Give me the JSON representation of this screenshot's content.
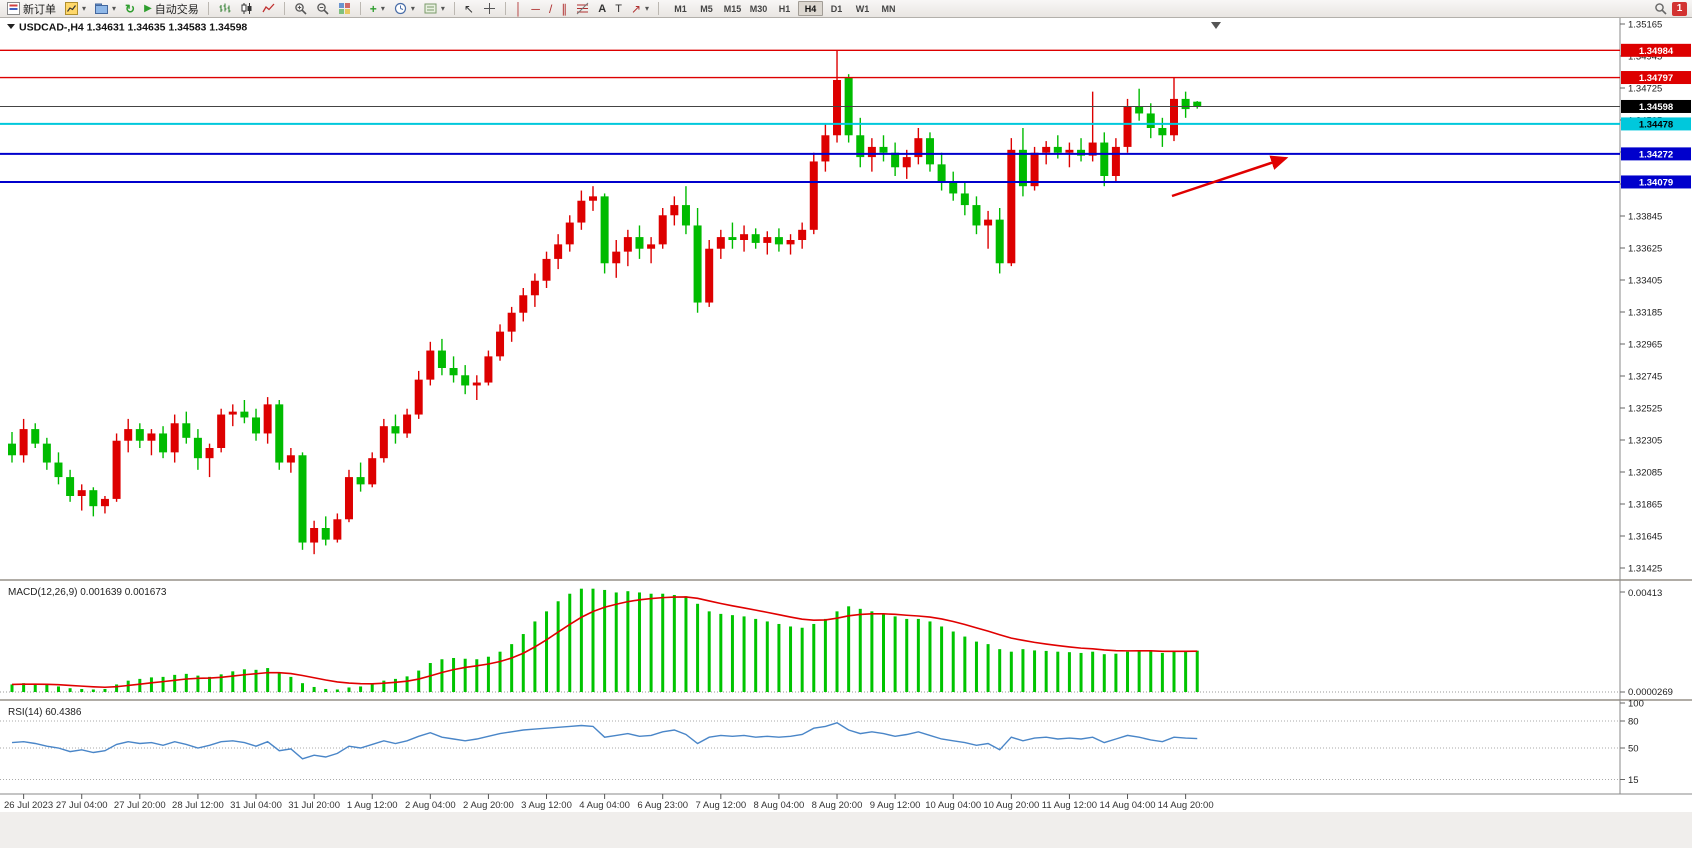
{
  "toolbar": {
    "new_order": "新订单",
    "autotrading": "自动交易",
    "timeframes": [
      "M1",
      "M5",
      "M15",
      "M30",
      "H1",
      "H4",
      "D1",
      "W1",
      "MN"
    ],
    "active_timeframe": "H4",
    "notification_count": "1"
  },
  "chart": {
    "symbol": "USDCAD-",
    "period": "H4",
    "header": "USDCAD-,H4 1.34631 1.34635 1.34583 1.34598",
    "open": "1.34631",
    "high": "1.34635",
    "low": "1.34583",
    "close": "1.34598",
    "colors": {
      "up": "#dd0000",
      "down": "#00bb00",
      "bid_line": "#444444"
    },
    "price_ticks": [
      "1.35165",
      "1.34945",
      "1.34725",
      "1.34505",
      "1.34285",
      "1.34065",
      "1.33845",
      "1.33625",
      "1.33405",
      "1.33185",
      "1.32965",
      "1.32745",
      "1.32525",
      "1.32305",
      "1.32085",
      "1.31865",
      "1.31645",
      "1.31425"
    ],
    "hlines": [
      {
        "price": 1.34984,
        "label": "1.34984",
        "color": "#dd0000",
        "text": "#ffffff",
        "w": 1.4
      },
      {
        "price": 1.34797,
        "label": "1.34797",
        "color": "#dd0000",
        "text": "#ffffff",
        "w": 1.4
      },
      {
        "price": 1.34478,
        "label": "1.34478",
        "color": "#00c8dc",
        "text": "#000000",
        "w": 2
      },
      {
        "price": 1.34272,
        "label": "1.34272",
        "color": "#0000cc",
        "text": "#ffffff",
        "w": 2
      },
      {
        "price": 1.34079,
        "label": "1.34079",
        "color": "#0000cc",
        "text": "#ffffff",
        "w": 2
      }
    ],
    "bid": {
      "price": 1.34598,
      "label": "1.34598",
      "line_color": "#444444",
      "badge_color": "#000000",
      "text": "#ffffff"
    },
    "time_labels": [
      "26 Jul 2023",
      "27 Jul 04:00",
      "27 Jul 20:00",
      "28 Jul 12:00",
      "31 Jul 04:00",
      "31 Jul 20:00",
      "1 Aug 12:00",
      "2 Aug 04:00",
      "2 Aug 20:00",
      "3 Aug 12:00",
      "4 Aug 04:00",
      "6 Aug 23:00",
      "7 Aug 12:00",
      "8 Aug 04:00",
      "8 Aug 20:00",
      "9 Aug 12:00",
      "10 Aug 04:00",
      "10 Aug 20:00",
      "11 Aug 12:00",
      "14 Aug 04:00",
      "14 Aug 20:00"
    ],
    "annotation_arrow_color": "#e00000"
  },
  "chart_data": {
    "type": "candlestick",
    "symbol": "USDCAD",
    "timeframe": "H4",
    "ylim": [
      1.31425,
      1.35165
    ],
    "ohlc": [
      [
        1.3228,
        1.3236,
        1.3215,
        1.322
      ],
      [
        1.322,
        1.3245,
        1.3215,
        1.3238
      ],
      [
        1.3238,
        1.3242,
        1.3225,
        1.3228
      ],
      [
        1.3228,
        1.3232,
        1.321,
        1.3215
      ],
      [
        1.3215,
        1.3222,
        1.32,
        1.3205
      ],
      [
        1.3205,
        1.321,
        1.3188,
        1.3192
      ],
      [
        1.3192,
        1.32,
        1.3182,
        1.3196
      ],
      [
        1.3196,
        1.3198,
        1.3178,
        1.3185
      ],
      [
        1.3185,
        1.3192,
        1.318,
        1.319
      ],
      [
        1.319,
        1.3235,
        1.3188,
        1.323
      ],
      [
        1.323,
        1.3245,
        1.3222,
        1.3238
      ],
      [
        1.3238,
        1.3242,
        1.3225,
        1.323
      ],
      [
        1.323,
        1.3238,
        1.322,
        1.3235
      ],
      [
        1.3235,
        1.324,
        1.3218,
        1.3222
      ],
      [
        1.3222,
        1.3248,
        1.3215,
        1.3242
      ],
      [
        1.3242,
        1.325,
        1.3228,
        1.3232
      ],
      [
        1.3232,
        1.3238,
        1.321,
        1.3218
      ],
      [
        1.3218,
        1.3228,
        1.3205,
        1.3225
      ],
      [
        1.3225,
        1.3252,
        1.3222,
        1.3248
      ],
      [
        1.3248,
        1.3255,
        1.324,
        1.325
      ],
      [
        1.325,
        1.3258,
        1.3242,
        1.3246
      ],
      [
        1.3246,
        1.3252,
        1.323,
        1.3235
      ],
      [
        1.3235,
        1.326,
        1.3228,
        1.3255
      ],
      [
        1.3255,
        1.3258,
        1.321,
        1.3215
      ],
      [
        1.3215,
        1.3225,
        1.3208,
        1.322
      ],
      [
        1.322,
        1.3222,
        1.3155,
        1.316
      ],
      [
        1.316,
        1.3175,
        1.3152,
        1.317
      ],
      [
        1.317,
        1.3178,
        1.3158,
        1.3162
      ],
      [
        1.3162,
        1.318,
        1.316,
        1.3176
      ],
      [
        1.3176,
        1.321,
        1.3174,
        1.3205
      ],
      [
        1.3205,
        1.3215,
        1.3195,
        1.32
      ],
      [
        1.32,
        1.3222,
        1.3198,
        1.3218
      ],
      [
        1.3218,
        1.3245,
        1.3215,
        1.324
      ],
      [
        1.324,
        1.3248,
        1.3228,
        1.3235
      ],
      [
        1.3235,
        1.3252,
        1.3232,
        1.3248
      ],
      [
        1.3248,
        1.3278,
        1.3245,
        1.3272
      ],
      [
        1.3272,
        1.3298,
        1.3268,
        1.3292
      ],
      [
        1.3292,
        1.33,
        1.3275,
        1.328
      ],
      [
        1.328,
        1.3288,
        1.327,
        1.3275
      ],
      [
        1.3275,
        1.3282,
        1.3262,
        1.3268
      ],
      [
        1.3268,
        1.3275,
        1.3258,
        1.327
      ],
      [
        1.327,
        1.3292,
        1.3268,
        1.3288
      ],
      [
        1.3288,
        1.331,
        1.3285,
        1.3305
      ],
      [
        1.3305,
        1.3322,
        1.3298,
        1.3318
      ],
      [
        1.3318,
        1.3335,
        1.3312,
        1.333
      ],
      [
        1.333,
        1.3345,
        1.3322,
        1.334
      ],
      [
        1.334,
        1.336,
        1.3335,
        1.3355
      ],
      [
        1.3355,
        1.3372,
        1.3348,
        1.3365
      ],
      [
        1.3365,
        1.3385,
        1.336,
        1.338
      ],
      [
        1.338,
        1.3402,
        1.3375,
        1.3395
      ],
      [
        1.3395,
        1.3405,
        1.3388,
        1.3398
      ],
      [
        1.3398,
        1.34,
        1.3345,
        1.3352
      ],
      [
        1.3352,
        1.3368,
        1.3342,
        1.336
      ],
      [
        1.336,
        1.3375,
        1.335,
        1.337
      ],
      [
        1.337,
        1.3378,
        1.3355,
        1.3362
      ],
      [
        1.3362,
        1.337,
        1.3352,
        1.3365
      ],
      [
        1.3365,
        1.339,
        1.3362,
        1.3385
      ],
      [
        1.3385,
        1.3398,
        1.3378,
        1.3392
      ],
      [
        1.3392,
        1.3405,
        1.3372,
        1.3378
      ],
      [
        1.3378,
        1.339,
        1.3318,
        1.3325
      ],
      [
        1.3325,
        1.3368,
        1.3322,
        1.3362
      ],
      [
        1.3362,
        1.3375,
        1.3355,
        1.337
      ],
      [
        1.337,
        1.338,
        1.3362,
        1.3368
      ],
      [
        1.3368,
        1.3378,
        1.336,
        1.3372
      ],
      [
        1.3372,
        1.3376,
        1.3362,
        1.3366
      ],
      [
        1.3366,
        1.3374,
        1.3358,
        1.337
      ],
      [
        1.337,
        1.3376,
        1.336,
        1.3365
      ],
      [
        1.3365,
        1.3372,
        1.3358,
        1.3368
      ],
      [
        1.3368,
        1.338,
        1.3362,
        1.3375
      ],
      [
        1.3375,
        1.3428,
        1.3372,
        1.3422
      ],
      [
        1.3422,
        1.3448,
        1.3415,
        1.344
      ],
      [
        1.344,
        1.34984,
        1.3435,
        1.3478
      ],
      [
        1.34797,
        1.3482,
        1.3435,
        1.344
      ],
      [
        1.344,
        1.3452,
        1.3418,
        1.3425
      ],
      [
        1.3425,
        1.3438,
        1.3415,
        1.3432
      ],
      [
        1.3432,
        1.344,
        1.3422,
        1.3428
      ],
      [
        1.3428,
        1.3435,
        1.3412,
        1.3418
      ],
      [
        1.3418,
        1.343,
        1.341,
        1.3425
      ],
      [
        1.3425,
        1.3445,
        1.342,
        1.3438
      ],
      [
        1.3438,
        1.3442,
        1.3415,
        1.342
      ],
      [
        1.342,
        1.3428,
        1.3402,
        1.3408
      ],
      [
        1.3408,
        1.3415,
        1.3395,
        1.34
      ],
      [
        1.34,
        1.3408,
        1.3385,
        1.3392
      ],
      [
        1.3392,
        1.3398,
        1.3372,
        1.3378
      ],
      [
        1.3378,
        1.3388,
        1.3362,
        1.3382
      ],
      [
        1.3382,
        1.339,
        1.3345,
        1.3352
      ],
      [
        1.3352,
        1.3438,
        1.335,
        1.343
      ],
      [
        1.343,
        1.3445,
        1.3398,
        1.3405
      ],
      [
        1.3405,
        1.3432,
        1.3402,
        1.3428
      ],
      [
        1.3428,
        1.3436,
        1.342,
        1.3432
      ],
      [
        1.3432,
        1.344,
        1.3424,
        1.3428
      ],
      [
        1.3428,
        1.3435,
        1.3418,
        1.343
      ],
      [
        1.343,
        1.3438,
        1.3422,
        1.3426
      ],
      [
        1.3426,
        1.347,
        1.3422,
        1.3435
      ],
      [
        1.3435,
        1.3442,
        1.3405,
        1.3412
      ],
      [
        1.3412,
        1.3438,
        1.3408,
        1.3432
      ],
      [
        1.3432,
        1.3465,
        1.3428,
        1.346
      ],
      [
        1.346,
        1.3472,
        1.345,
        1.3455
      ],
      [
        1.3455,
        1.3462,
        1.3438,
        1.3445
      ],
      [
        1.3445,
        1.3452,
        1.3432,
        1.344
      ],
      [
        1.344,
        1.348,
        1.3436,
        1.3465
      ],
      [
        1.3465,
        1.347,
        1.3452,
        1.3458
      ],
      [
        1.34631,
        1.34635,
        1.34583,
        1.34598
      ]
    ]
  },
  "macd": {
    "title": "MACD(12,26,9)",
    "value_main": "0.001639",
    "value_signal": "0.001673",
    "axis_top": "0.00413",
    "axis_bottom": "0.0000269",
    "hist_color": "#00c400",
    "signal_color": "#e00000",
    "histogram": [
      0.0003,
      0.00035,
      0.00032,
      0.00028,
      0.00022,
      0.00015,
      0.00012,
      0.0001,
      0.00012,
      0.0003,
      0.00045,
      0.00052,
      0.00058,
      0.0006,
      0.00068,
      0.00072,
      0.00065,
      0.0006,
      0.0007,
      0.00082,
      0.0009,
      0.00088,
      0.00095,
      0.00075,
      0.0006,
      0.00035,
      0.0002,
      0.00012,
      0.0001,
      0.00018,
      0.00022,
      0.0003,
      0.00045,
      0.00052,
      0.00062,
      0.00085,
      0.00115,
      0.0013,
      0.00135,
      0.00132,
      0.0013,
      0.0014,
      0.0016,
      0.0019,
      0.0023,
      0.0028,
      0.0032,
      0.0036,
      0.0039,
      0.0041,
      0.0041,
      0.00405,
      0.00395,
      0.004,
      0.00395,
      0.0039,
      0.0039,
      0.00385,
      0.0038,
      0.0035,
      0.0032,
      0.0031,
      0.00305,
      0.003,
      0.0029,
      0.0028,
      0.0027,
      0.0026,
      0.00255,
      0.0027,
      0.0029,
      0.0032,
      0.0034,
      0.0033,
      0.0032,
      0.0031,
      0.003,
      0.0029,
      0.0029,
      0.0028,
      0.0026,
      0.0024,
      0.0022,
      0.002,
      0.0019,
      0.0017,
      0.0016,
      0.0017,
      0.00165,
      0.00163,
      0.0016,
      0.00158,
      0.00155,
      0.0016,
      0.0015,
      0.00152,
      0.0016,
      0.00165,
      0.00162,
      0.00155,
      0.0016,
      0.00162,
      0.00164
    ]
  },
  "rsi": {
    "title": "RSI(14)",
    "value": "60.4386",
    "color": "#4a86c8",
    "levels": [
      "100",
      "80",
      "50",
      "15"
    ],
    "level_values": [
      100,
      80,
      50,
      15
    ],
    "values": [
      56,
      57,
      55,
      52,
      50,
      46,
      48,
      45,
      47,
      54,
      57,
      55,
      56,
      53,
      57,
      54,
      50,
      53,
      57,
      58,
      56,
      52,
      57,
      47,
      49,
      38,
      42,
      40,
      44,
      52,
      50,
      54,
      58,
      55,
      58,
      63,
      67,
      62,
      60,
      58,
      60,
      63,
      66,
      68,
      70,
      71,
      72,
      73,
      74,
      75,
      74,
      62,
      64,
      66,
      63,
      64,
      68,
      70,
      65,
      55,
      62,
      64,
      63,
      64,
      62,
      63,
      62,
      63,
      65,
      72,
      74,
      78,
      70,
      66,
      68,
      66,
      63,
      65,
      68,
      64,
      60,
      58,
      56,
      53,
      55,
      48,
      62,
      58,
      61,
      62,
      60,
      61,
      60,
      62,
      56,
      60,
      64,
      62,
      59,
      57,
      62,
      61,
      60.44
    ]
  }
}
